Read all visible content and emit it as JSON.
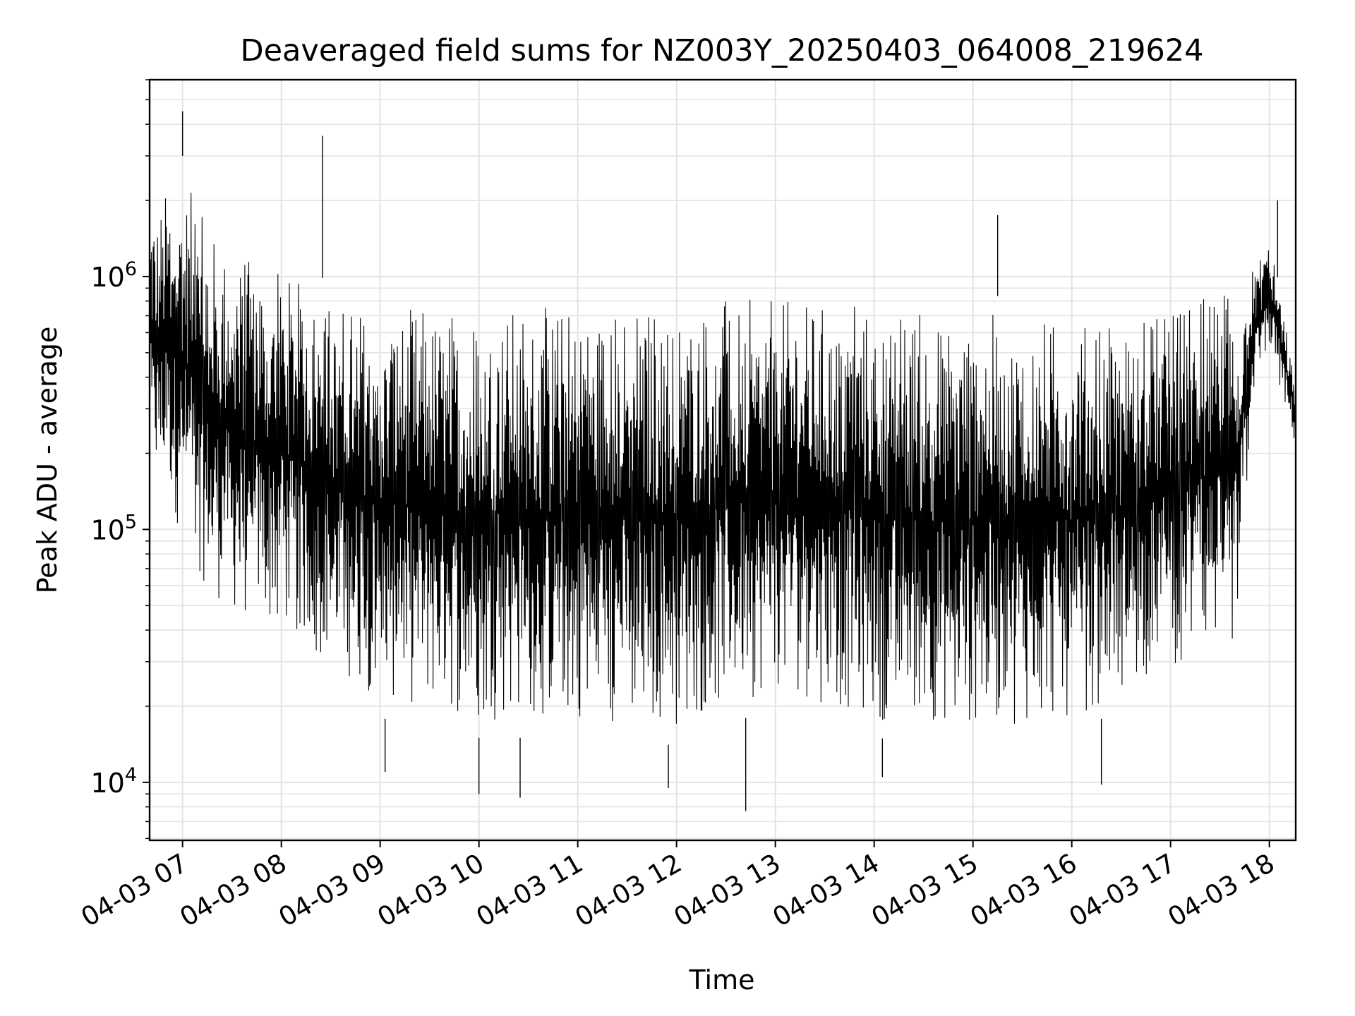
{
  "chart_data": {
    "type": "line",
    "title": "Deaveraged field sums for NZ003Y_20250403_064008_219624",
    "xlabel": "Time",
    "ylabel": "Peak ADU - average",
    "xscale": "time",
    "yscale": "log",
    "xlim": [
      "2025-04-03 06:40",
      "2025-04-03 18:16"
    ],
    "ylim": [
      5900,
      6000000
    ],
    "grid": true,
    "legend": "none",
    "x_ticks": [
      "04-03 07",
      "04-03 08",
      "04-03 09",
      "04-03 10",
      "04-03 11",
      "04-03 12",
      "04-03 13",
      "04-03 14",
      "04-03 15",
      "04-03 16",
      "04-03 17",
      "04-03 18"
    ],
    "x_tick_times": [
      "2025-04-03 07:00",
      "2025-04-03 08:00",
      "2025-04-03 09:00",
      "2025-04-03 10:00",
      "2025-04-03 11:00",
      "2025-04-03 12:00",
      "2025-04-03 13:00",
      "2025-04-03 14:00",
      "2025-04-03 15:00",
      "2025-04-03 16:00",
      "2025-04-03 17:00",
      "2025-04-03 18:00"
    ],
    "y_ticks": [
      {
        "base": "10",
        "exp": "4",
        "value": 10000
      },
      {
        "base": "10",
        "exp": "5",
        "value": 100000
      },
      {
        "base": "10",
        "exp": "6",
        "value": 1000000
      }
    ],
    "series": [
      {
        "color": "#000000",
        "envelope": {
          "time": [
            "2025-04-03 06:40",
            "2025-04-03 06:50",
            "2025-04-03 07:00",
            "2025-04-03 07:15",
            "2025-04-03 07:30",
            "2025-04-03 07:45",
            "2025-04-03 08:00",
            "2025-04-03 08:30",
            "2025-04-03 09:00",
            "2025-04-03 10:00",
            "2025-04-03 11:00",
            "2025-04-03 12:00",
            "2025-04-03 13:00",
            "2025-04-03 14:00",
            "2025-04-03 15:00",
            "2025-04-03 16:00",
            "2025-04-03 16:30",
            "2025-04-03 17:00",
            "2025-04-03 17:40",
            "2025-04-03 17:50",
            "2025-04-03 18:00",
            "2025-04-03 18:16"
          ],
          "upper": [
            2000000,
            2500000,
            3000000,
            1800000,
            1500000,
            1300000,
            1200000,
            950000,
            900000,
            900000,
            900000,
            950000,
            950000,
            900000,
            850000,
            800000,
            700000,
            900000,
            1000000,
            1200000,
            1500000,
            400000
          ],
          "lower": [
            150000,
            120000,
            80000,
            50000,
            40000,
            35000,
            35000,
            25000,
            18000,
            15000,
            15000,
            14000,
            20000,
            15000,
            14000,
            15000,
            20000,
            25000,
            30000,
            300000,
            500000,
            200000
          ]
        },
        "peaks": [
          {
            "time": "2025-04-03 07:00",
            "value": 4500000
          },
          {
            "time": "2025-04-03 08:25",
            "value": 3600000
          },
          {
            "time": "2025-04-03 15:15",
            "value": 1750000
          },
          {
            "time": "2025-04-03 18:05",
            "value": 2000000
          }
        ],
        "troughs": [
          {
            "time": "2025-04-03 09:03",
            "value": 11000
          },
          {
            "time": "2025-04-03 10:00",
            "value": 9000
          },
          {
            "time": "2025-04-03 10:25",
            "value": 8700
          },
          {
            "time": "2025-04-03 11:55",
            "value": 9500
          },
          {
            "time": "2025-04-03 12:42",
            "value": 7700
          },
          {
            "time": "2025-04-03 14:05",
            "value": 10500
          },
          {
            "time": "2025-04-03 16:18",
            "value": 9800
          }
        ]
      }
    ]
  }
}
